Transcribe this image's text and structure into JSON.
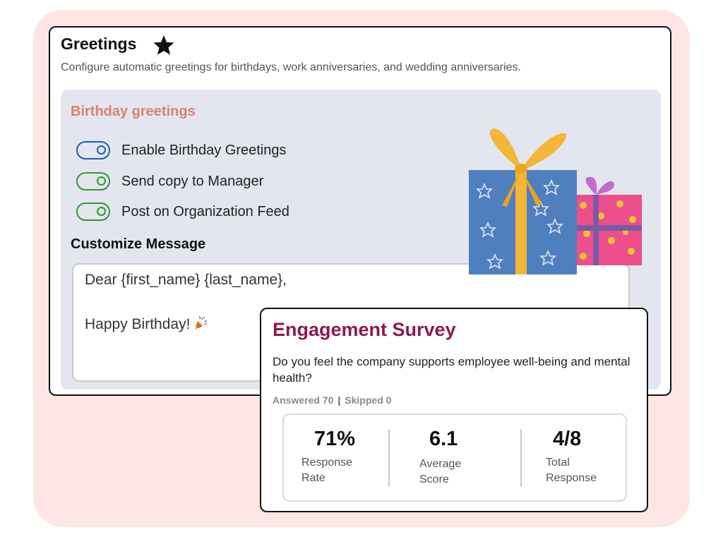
{
  "greetings": {
    "title": "Greetings",
    "subtitle": "Configure automatic greetings for birthdays, work anniversaries, and wedding anniversaries.",
    "star_icon": "star-icon",
    "birthday": {
      "section_title": "Birthday greetings",
      "toggles": [
        {
          "label": "Enable Birthday Greetings",
          "on": true,
          "color": "#1e5fb5"
        },
        {
          "label": "Send copy to Manager",
          "on": true,
          "color": "#2e9a2e"
        },
        {
          "label": "Post on Organization Feed",
          "on": true,
          "color": "#2e9a2e"
        }
      ],
      "customize_title": "Customize Message",
      "message_line1": "Dear {first_name} {last_name},",
      "message_line2": "Happy Birthday!",
      "message_icon": "party-popper-icon",
      "illustration": "gift-boxes"
    }
  },
  "survey": {
    "title": "Engagement Survey",
    "question": "Do you feel the company supports employee well-being and mental health?",
    "answered": "Answered 70",
    "separator": "|",
    "skipped": "Skipped 0",
    "stats": [
      {
        "value": "71%",
        "label_line1": "Response",
        "label_line2": "Rate"
      },
      {
        "value": "6.1",
        "label_line1": "Average",
        "label_line2": "Score"
      },
      {
        "value": "4/8",
        "label_line1": "Total",
        "label_line2": "Response"
      }
    ]
  },
  "colors": {
    "background_panel": "#fde6e4",
    "accent_birthday": "#d9816f",
    "accent_survey": "#8b1a4e",
    "toggle_blue": "#1e5fb5",
    "toggle_green": "#2e9a2e"
  }
}
